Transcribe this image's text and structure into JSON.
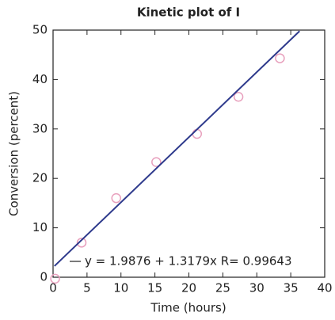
{
  "chart_data": {
    "type": "scatter",
    "title": "Kinetic plot of I",
    "xlabel": "Time (hours)",
    "ylabel": "Conversion (percent)",
    "xlim": [
      0,
      40
    ],
    "ylim": [
      0,
      50
    ],
    "xticks": [
      0,
      5,
      10,
      15,
      20,
      25,
      30,
      35,
      40
    ],
    "yticks": [
      0,
      10,
      20,
      30,
      40,
      50
    ],
    "legend": "lower right",
    "series": [
      {
        "color": "#e8a0bd",
        "x": [
          0.3,
          4.2,
          9.3,
          15.2,
          21.2,
          27.3,
          33.4
        ],
        "values": [
          -0.3,
          7,
          16,
          23.3,
          29,
          36.5,
          44.3
        ]
      },
      {
        "type": "line",
        "name": "y = 1.9876 + 1.3179x  R= 0.99643",
        "color": "#2e3a8c",
        "x": [
          0.2,
          36.3
        ],
        "values": [
          2.25,
          49.8
        ]
      }
    ]
  }
}
